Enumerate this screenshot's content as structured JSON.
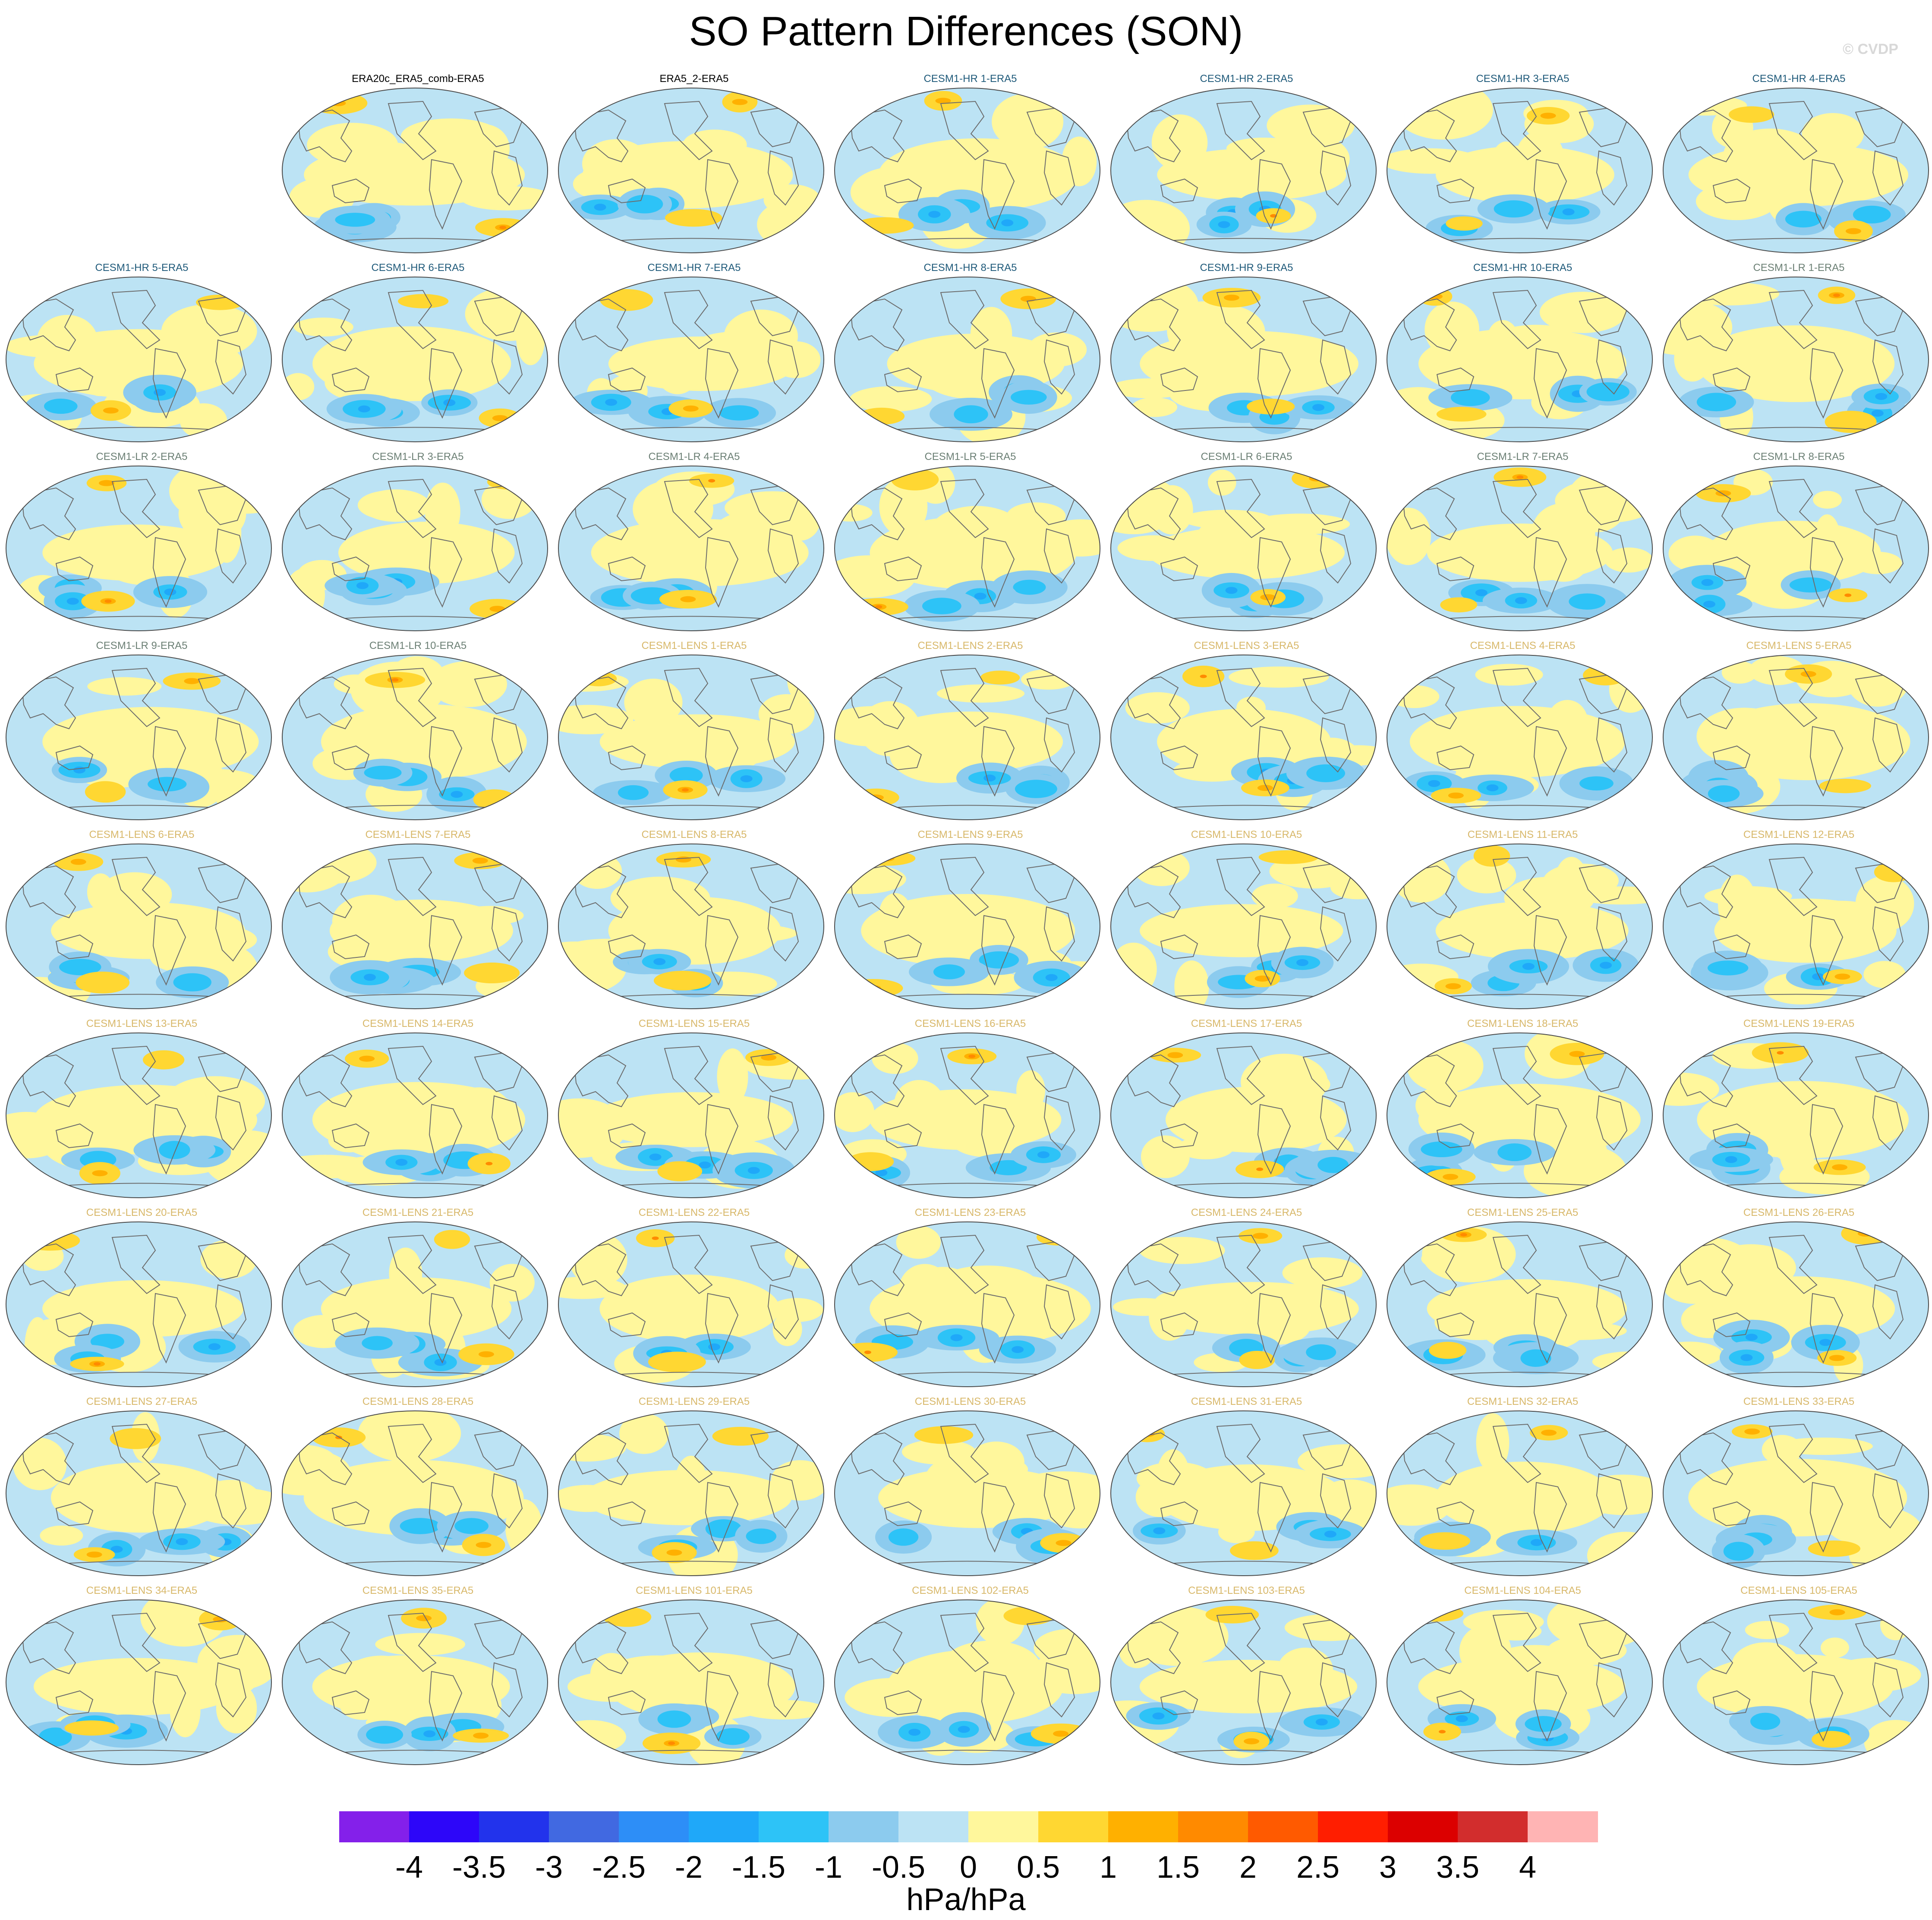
{
  "title": "SO Pattern Differences (SON)",
  "credit": "© CVDP",
  "colorbar": {
    "colors": [
      "#8420ea",
      "#2d06f9",
      "#2233ec",
      "#4169e1",
      "#2d8ef7",
      "#1fa8f9",
      "#2dc3f7",
      "#8ccbee",
      "#bce3f4",
      "#fff79c",
      "#ffd732",
      "#ffb000",
      "#ff8a00",
      "#ff5a00",
      "#ff1e00",
      "#dc0000",
      "#d22d2d",
      "#ffb4b4"
    ],
    "ticks": [
      "-4",
      "-3.5",
      "-3",
      "-2.5",
      "-2",
      "-1.5",
      "-1",
      "-0.5",
      "0",
      "0.5",
      "1",
      "1.5",
      "2",
      "2.5",
      "3",
      "3.5",
      "4"
    ],
    "units": "hPa/hPa"
  },
  "panels": [
    {
      "row": 0,
      "col": 1,
      "label": "ERA20c_ERA5_comb-ERA5",
      "color": "#000000"
    },
    {
      "row": 0,
      "col": 2,
      "label": "ERA5_2-ERA5",
      "color": "#000000"
    },
    {
      "row": 0,
      "col": 3,
      "label": "CESM1-HR 1-ERA5",
      "color": "#1f5a7a"
    },
    {
      "row": 0,
      "col": 4,
      "label": "CESM1-HR 2-ERA5",
      "color": "#1f5a7a"
    },
    {
      "row": 0,
      "col": 5,
      "label": "CESM1-HR 3-ERA5",
      "color": "#1f5a7a"
    },
    {
      "row": 0,
      "col": 6,
      "label": "CESM1-HR 4-ERA5",
      "color": "#1f5a7a"
    },
    {
      "row": 1,
      "col": 0,
      "label": "CESM1-HR 5-ERA5",
      "color": "#1f5a7a"
    },
    {
      "row": 1,
      "col": 1,
      "label": "CESM1-HR 6-ERA5",
      "color": "#1f5a7a"
    },
    {
      "row": 1,
      "col": 2,
      "label": "CESM1-HR 7-ERA5",
      "color": "#1f5a7a"
    },
    {
      "row": 1,
      "col": 3,
      "label": "CESM1-HR 8-ERA5",
      "color": "#1f5a7a"
    },
    {
      "row": 1,
      "col": 4,
      "label": "CESM1-HR 9-ERA5",
      "color": "#1f5a7a"
    },
    {
      "row": 1,
      "col": 5,
      "label": "CESM1-HR 10-ERA5",
      "color": "#1f5a7a"
    },
    {
      "row": 1,
      "col": 6,
      "label": "CESM1-LR 1-ERA5",
      "color": "#6b7f74"
    },
    {
      "row": 2,
      "col": 0,
      "label": "CESM1-LR 2-ERA5",
      "color": "#6b7f74"
    },
    {
      "row": 2,
      "col": 1,
      "label": "CESM1-LR 3-ERA5",
      "color": "#6b7f74"
    },
    {
      "row": 2,
      "col": 2,
      "label": "CESM1-LR 4-ERA5",
      "color": "#6b7f74"
    },
    {
      "row": 2,
      "col": 3,
      "label": "CESM1-LR 5-ERA5",
      "color": "#6b7f74"
    },
    {
      "row": 2,
      "col": 4,
      "label": "CESM1-LR 6-ERA5",
      "color": "#6b7f74"
    },
    {
      "row": 2,
      "col": 5,
      "label": "CESM1-LR 7-ERA5",
      "color": "#6b7f74"
    },
    {
      "row": 2,
      "col": 6,
      "label": "CESM1-LR 8-ERA5",
      "color": "#6b7f74"
    },
    {
      "row": 3,
      "col": 0,
      "label": "CESM1-LR 9-ERA5",
      "color": "#6b7f74"
    },
    {
      "row": 3,
      "col": 1,
      "label": "CESM1-LR 10-ERA5",
      "color": "#6b7f74"
    },
    {
      "row": 3,
      "col": 2,
      "label": "CESM1-LENS 1-ERA5",
      "color": "#d8b86a"
    },
    {
      "row": 3,
      "col": 3,
      "label": "CESM1-LENS 2-ERA5",
      "color": "#d8b86a"
    },
    {
      "row": 3,
      "col": 4,
      "label": "CESM1-LENS 3-ERA5",
      "color": "#d8b86a"
    },
    {
      "row": 3,
      "col": 5,
      "label": "CESM1-LENS 4-ERA5",
      "color": "#d8b86a"
    },
    {
      "row": 3,
      "col": 6,
      "label": "CESM1-LENS 5-ERA5",
      "color": "#d8b86a"
    },
    {
      "row": 4,
      "col": 0,
      "label": "CESM1-LENS 6-ERA5",
      "color": "#d8b86a"
    },
    {
      "row": 4,
      "col": 1,
      "label": "CESM1-LENS 7-ERA5",
      "color": "#d8b86a"
    },
    {
      "row": 4,
      "col": 2,
      "label": "CESM1-LENS 8-ERA5",
      "color": "#d8b86a"
    },
    {
      "row": 4,
      "col": 3,
      "label": "CESM1-LENS 9-ERA5",
      "color": "#d8b86a"
    },
    {
      "row": 4,
      "col": 4,
      "label": "CESM1-LENS 10-ERA5",
      "color": "#d8b86a"
    },
    {
      "row": 4,
      "col": 5,
      "label": "CESM1-LENS 11-ERA5",
      "color": "#d8b86a"
    },
    {
      "row": 4,
      "col": 6,
      "label": "CESM1-LENS 12-ERA5",
      "color": "#d8b86a"
    },
    {
      "row": 5,
      "col": 0,
      "label": "CESM1-LENS 13-ERA5",
      "color": "#d8b86a"
    },
    {
      "row": 5,
      "col": 1,
      "label": "CESM1-LENS 14-ERA5",
      "color": "#d8b86a"
    },
    {
      "row": 5,
      "col": 2,
      "label": "CESM1-LENS 15-ERA5",
      "color": "#d8b86a"
    },
    {
      "row": 5,
      "col": 3,
      "label": "CESM1-LENS 16-ERA5",
      "color": "#d8b86a"
    },
    {
      "row": 5,
      "col": 4,
      "label": "CESM1-LENS 17-ERA5",
      "color": "#d8b86a"
    },
    {
      "row": 5,
      "col": 5,
      "label": "CESM1-LENS 18-ERA5",
      "color": "#d8b86a"
    },
    {
      "row": 5,
      "col": 6,
      "label": "CESM1-LENS 19-ERA5",
      "color": "#d8b86a"
    },
    {
      "row": 6,
      "col": 0,
      "label": "CESM1-LENS 20-ERA5",
      "color": "#d8b86a"
    },
    {
      "row": 6,
      "col": 1,
      "label": "CESM1-LENS 21-ERA5",
      "color": "#d8b86a"
    },
    {
      "row": 6,
      "col": 2,
      "label": "CESM1-LENS 22-ERA5",
      "color": "#d8b86a"
    },
    {
      "row": 6,
      "col": 3,
      "label": "CESM1-LENS 23-ERA5",
      "color": "#d8b86a"
    },
    {
      "row": 6,
      "col": 4,
      "label": "CESM1-LENS 24-ERA5",
      "color": "#d8b86a"
    },
    {
      "row": 6,
      "col": 5,
      "label": "CESM1-LENS 25-ERA5",
      "color": "#d8b86a"
    },
    {
      "row": 6,
      "col": 6,
      "label": "CESM1-LENS 26-ERA5",
      "color": "#d8b86a"
    },
    {
      "row": 7,
      "col": 0,
      "label": "CESM1-LENS 27-ERA5",
      "color": "#d8b86a"
    },
    {
      "row": 7,
      "col": 1,
      "label": "CESM1-LENS 28-ERA5",
      "color": "#d8b86a"
    },
    {
      "row": 7,
      "col": 2,
      "label": "CESM1-LENS 29-ERA5",
      "color": "#d8b86a"
    },
    {
      "row": 7,
      "col": 3,
      "label": "CESM1-LENS 30-ERA5",
      "color": "#d8b86a"
    },
    {
      "row": 7,
      "col": 4,
      "label": "CESM1-LENS 31-ERA5",
      "color": "#d8b86a"
    },
    {
      "row": 7,
      "col": 5,
      "label": "CESM1-LENS 32-ERA5",
      "color": "#d8b86a"
    },
    {
      "row": 7,
      "col": 6,
      "label": "CESM1-LENS 33-ERA5",
      "color": "#d8b86a"
    },
    {
      "row": 8,
      "col": 0,
      "label": "CESM1-LENS 34-ERA5",
      "color": "#d8b86a"
    },
    {
      "row": 8,
      "col": 1,
      "label": "CESM1-LENS 35-ERA5",
      "color": "#d8b86a"
    },
    {
      "row": 8,
      "col": 2,
      "label": "CESM1-LENS 101-ERA5",
      "color": "#d8b86a"
    },
    {
      "row": 8,
      "col": 3,
      "label": "CESM1-LENS 102-ERA5",
      "color": "#d8b86a"
    },
    {
      "row": 8,
      "col": 4,
      "label": "CESM1-LENS 103-ERA5",
      "color": "#d8b86a"
    },
    {
      "row": 8,
      "col": 5,
      "label": "CESM1-LENS 104-ERA5",
      "color": "#d8b86a"
    },
    {
      "row": 8,
      "col": 6,
      "label": "CESM1-LENS 105-ERA5",
      "color": "#d8b86a"
    }
  ]
}
